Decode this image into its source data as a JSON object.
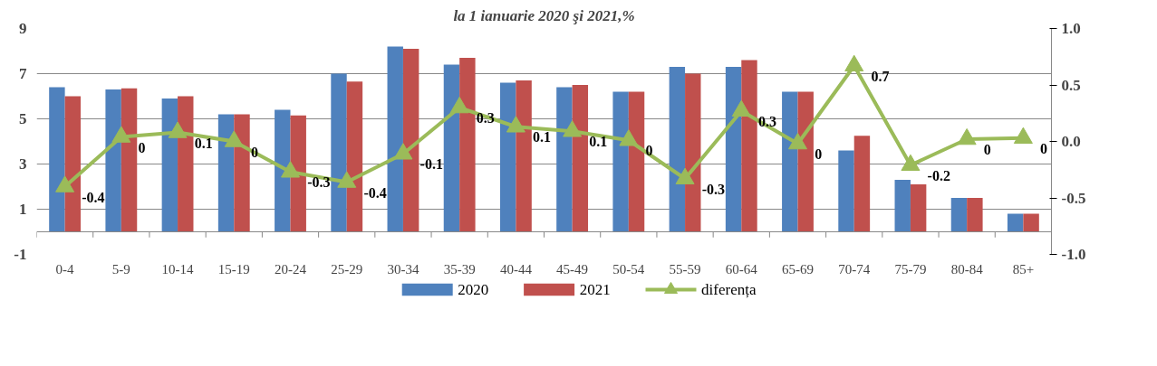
{
  "chart_data": {
    "type": "bar",
    "title": "la 1 ianuarie 2020 şi 2021,%",
    "categories": [
      "0-4",
      "5-9",
      "10-14",
      "15-19",
      "20-24",
      "25-29",
      "30-34",
      "35-39",
      "40-44",
      "45-49",
      "50-54",
      "55-59",
      "60-64",
      "65-69",
      "70-74",
      "75-79",
      "80-84",
      "85+"
    ],
    "series": [
      {
        "name": "2020",
        "color": "#4f81bd",
        "values": [
          6.4,
          6.3,
          5.9,
          5.2,
          5.4,
          7.0,
          8.2,
          7.4,
          6.6,
          6.4,
          6.2,
          7.3,
          7.3,
          6.2,
          3.6,
          2.3,
          1.5,
          0.8
        ]
      },
      {
        "name": "2021",
        "color": "#c0504d",
        "values": [
          6.0,
          6.35,
          6.0,
          5.2,
          5.15,
          6.65,
          8.1,
          7.7,
          6.7,
          6.5,
          6.2,
          7.0,
          7.6,
          6.2,
          4.25,
          2.1,
          1.5,
          0.8
        ]
      },
      {
        "name": "diferența",
        "type": "line",
        "axis": "y2",
        "color": "#9bbb59",
        "marker": "triangle",
        "values": [
          -0.4,
          0.04,
          0.08,
          0.0,
          -0.27,
          -0.36,
          -0.11,
          0.3,
          0.13,
          0.09,
          0.01,
          -0.33,
          0.27,
          -0.02,
          0.67,
          -0.21,
          0.02,
          0.03
        ],
        "value_labels": [
          "-0.4",
          "0",
          "0.1",
          "0",
          "-0.3",
          "-0.4",
          "-0.1",
          "0.3",
          "0.1",
          "0.1",
          "0",
          "-0.3",
          "0.3",
          "0",
          "0.7",
          "-0.2",
          "0",
          "0"
        ]
      }
    ],
    "ylim": [
      -1,
      9
    ],
    "yticks": [
      9,
      7,
      5,
      3,
      1,
      -1
    ],
    "y2lim": [
      -1,
      1
    ],
    "y2ticks": [
      {
        "value": 1,
        "label": "1.0"
      },
      {
        "value": 0.5,
        "label": "0.5"
      },
      {
        "value": 0,
        "label": "0.0"
      },
      {
        "value": -0.5,
        "label": "-0.5"
      },
      {
        "value": -1,
        "label": "-1.0"
      }
    ],
    "grid": "y",
    "legend": "bottom"
  }
}
